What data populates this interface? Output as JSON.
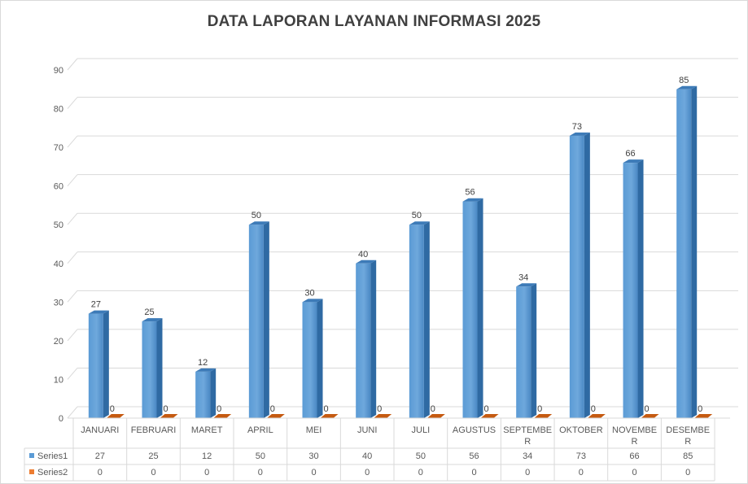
{
  "chart_data": {
    "type": "bar",
    "title": "DATA LAPORAN LAYANAN INFORMASI 2025",
    "categories": [
      [
        "JANUARI"
      ],
      [
        "FEBRUARI"
      ],
      [
        "MARET"
      ],
      [
        "APRIL"
      ],
      [
        "MEI"
      ],
      [
        "JUNI"
      ],
      [
        "JULI"
      ],
      [
        "AGUSTUS"
      ],
      [
        "SEPTEMBE",
        "R"
      ],
      [
        "OKTOBER"
      ],
      [
        "NOVEMBE",
        "R"
      ],
      [
        "DESEMBE",
        "R"
      ]
    ],
    "series": [
      {
        "name": "Series1",
        "color": "#5b9bd5",
        "values": [
          27,
          25,
          12,
          50,
          30,
          40,
          50,
          56,
          34,
          73,
          66,
          85
        ]
      },
      {
        "name": "Series2",
        "color": "#ed7d31",
        "values": [
          0,
          0,
          0,
          0,
          0,
          0,
          0,
          0,
          0,
          0,
          0,
          0
        ]
      }
    ],
    "yticks": [
      0,
      10,
      20,
      30,
      40,
      50,
      60,
      70,
      80,
      90
    ],
    "ylim": [
      0,
      90
    ],
    "grid": true,
    "data_labels": true,
    "legend": "data-table",
    "style": "3d-column"
  }
}
